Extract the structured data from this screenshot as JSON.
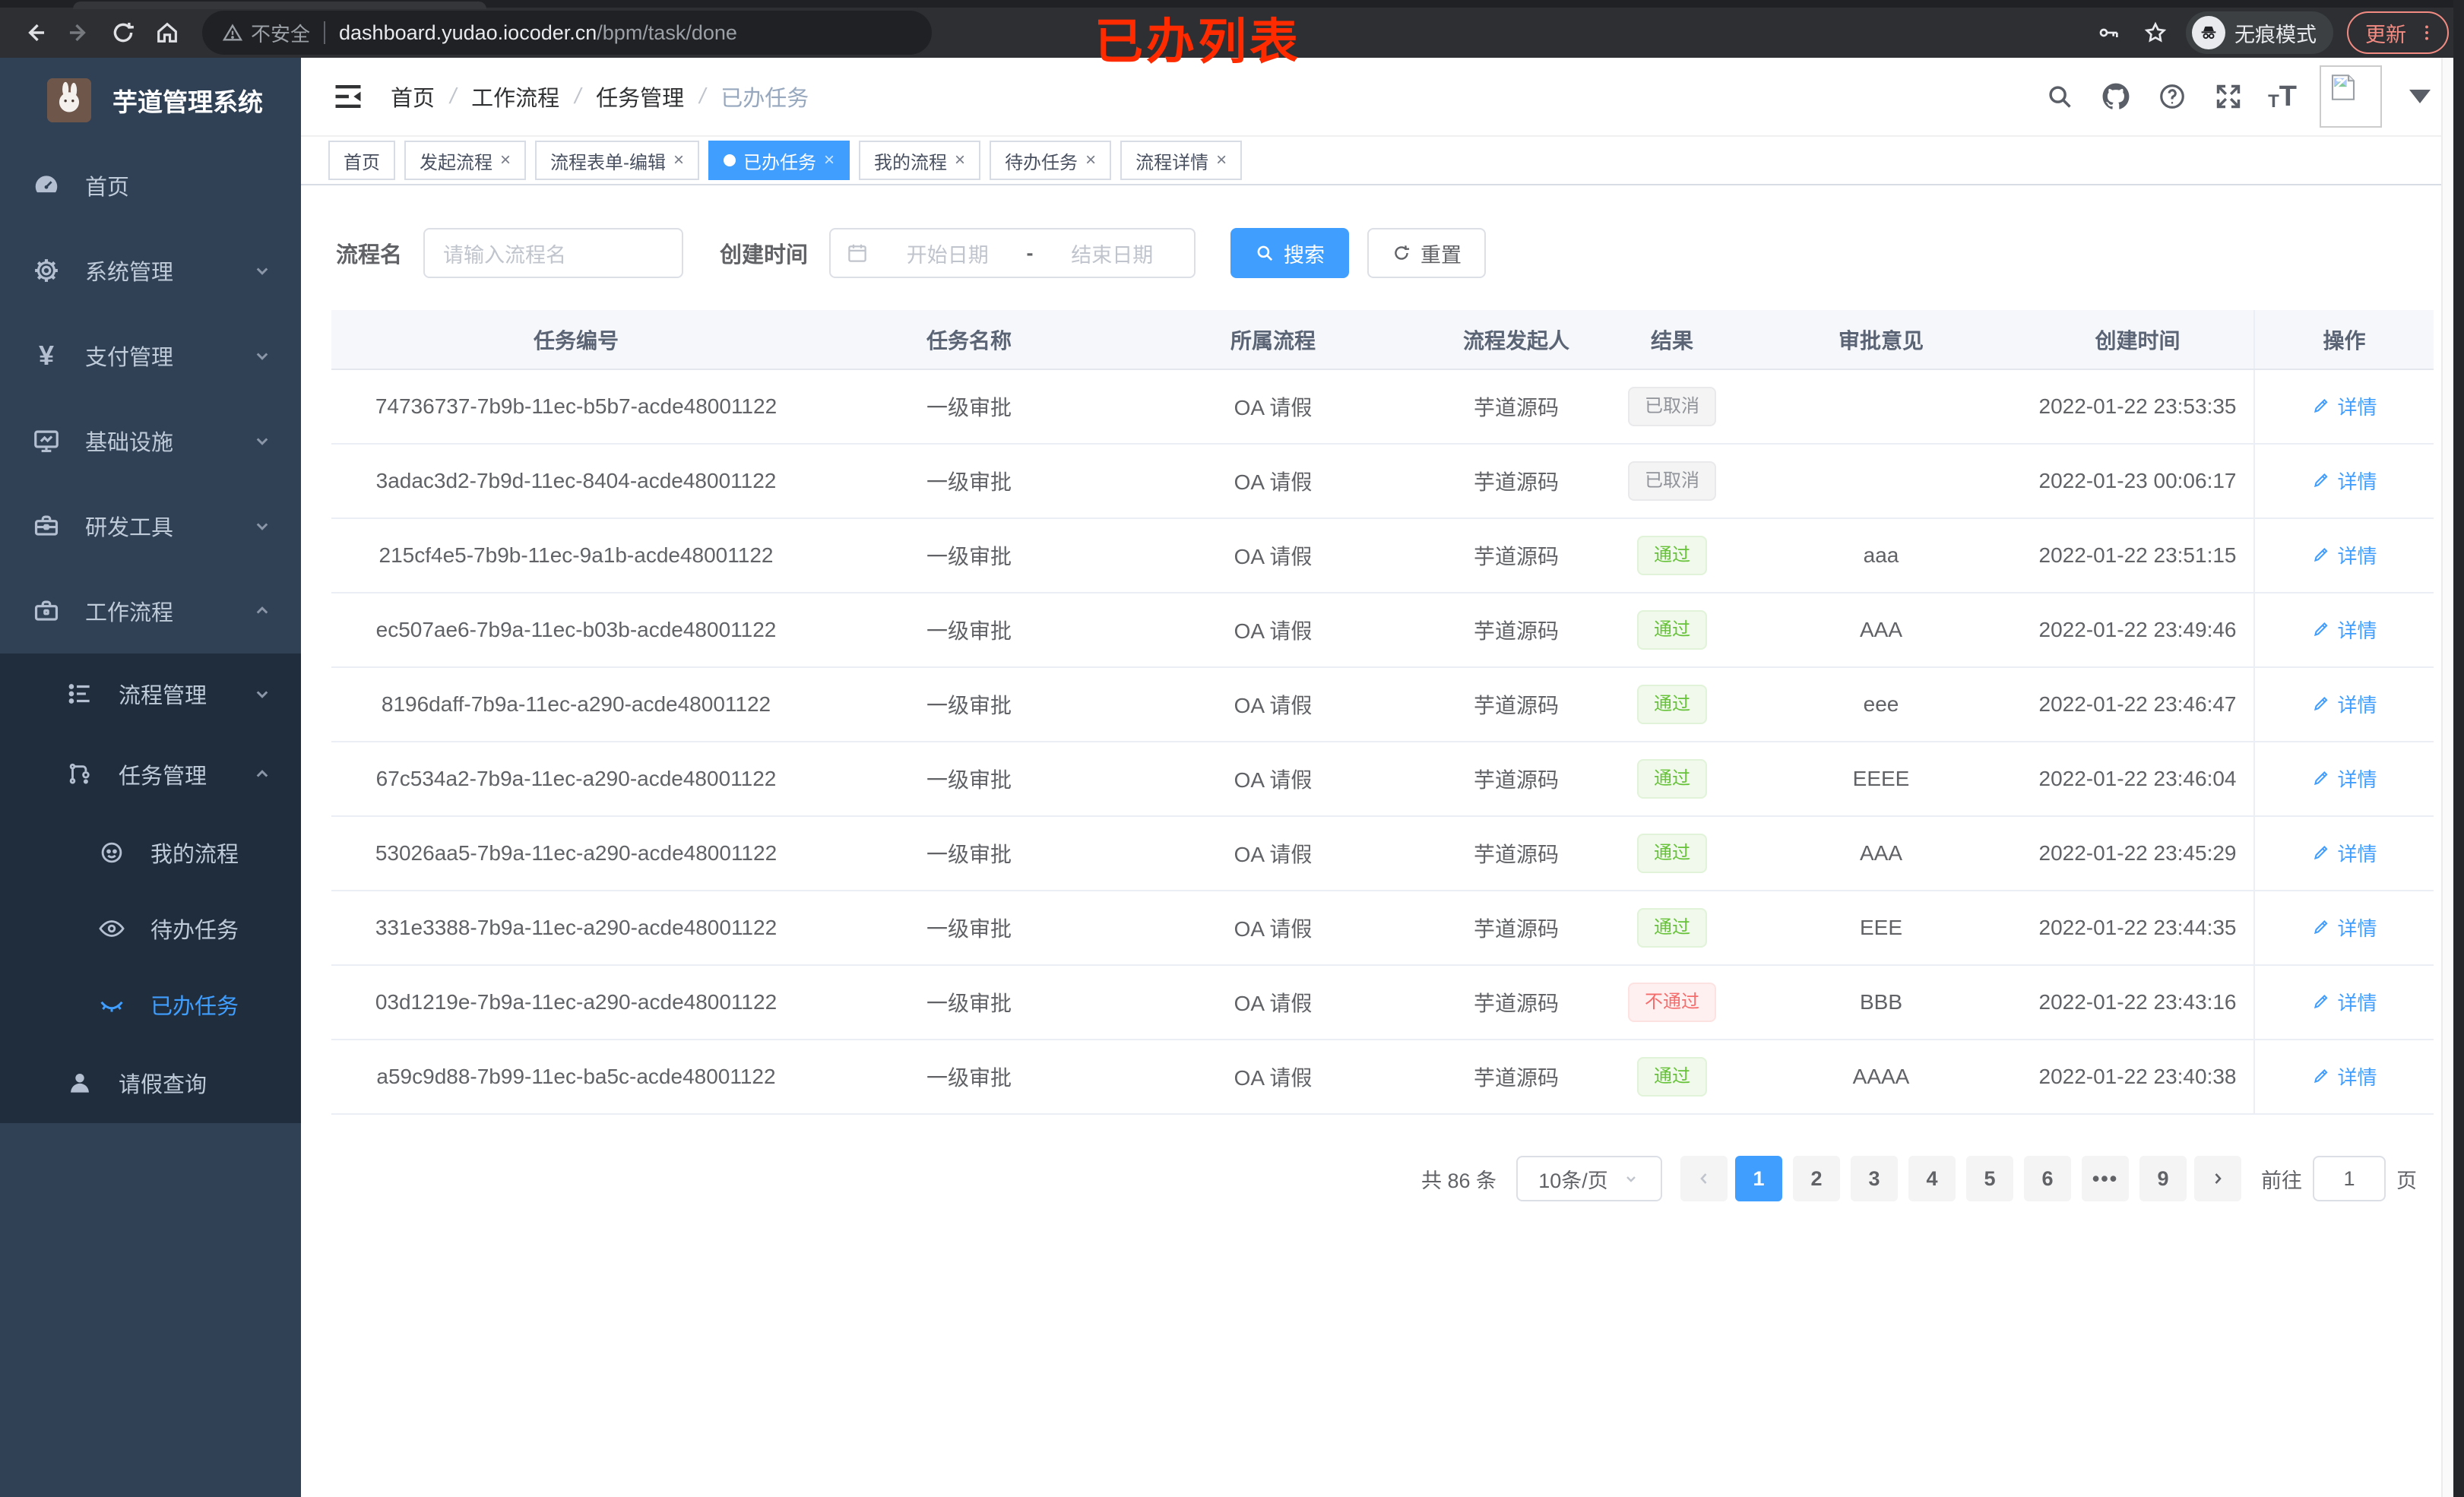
{
  "colors": {
    "accent": "#409eff",
    "success": "#67c23a",
    "danger": "#f56c6c",
    "info": "#909399",
    "sidebar_bg": "#304156",
    "submenu_bg": "#1f2d3d",
    "annotation": "#ff2b00"
  },
  "browser": {
    "security_label": "不安全",
    "url_host": "dashboard.yudao.iocoder.cn",
    "url_path": "/bpm/task/done",
    "incognito_label": "无痕模式",
    "update_label": "更新"
  },
  "annotation": "已办列表",
  "sidebar": {
    "title": "芋道管理系统",
    "menu": {
      "home": "首页",
      "system": "系统管理",
      "pay": "支付管理",
      "infra": "基础设施",
      "dev": "研发工具",
      "workflow": "工作流程",
      "process_mgmt": "流程管理",
      "task_mgmt": "任务管理",
      "my_process": "我的流程",
      "todo": "待办任务",
      "done": "已办任务",
      "leave": "请假查询"
    }
  },
  "breadcrumb": [
    "首页",
    "工作流程",
    "任务管理",
    "已办任务"
  ],
  "breadcrumb_separator": "/",
  "tabs": [
    {
      "label": "首页",
      "closable": false,
      "active": false
    },
    {
      "label": "发起流程",
      "closable": true,
      "active": false
    },
    {
      "label": "流程表单-编辑",
      "closable": true,
      "active": false
    },
    {
      "label": "已办任务",
      "closable": true,
      "active": true
    },
    {
      "label": "我的流程",
      "closable": true,
      "active": false
    },
    {
      "label": "待办任务",
      "closable": true,
      "active": false
    },
    {
      "label": "流程详情",
      "closable": true,
      "active": false
    }
  ],
  "close_glyph": "×",
  "filters": {
    "name_label": "流程名",
    "name_placeholder": "请输入流程名",
    "time_label": "创建时间",
    "start_placeholder": "开始日期",
    "range_separator": "-",
    "end_placeholder": "结束日期",
    "search_label": "搜索",
    "reset_label": "重置"
  },
  "table": {
    "columns": [
      "任务编号",
      "任务名称",
      "所属流程",
      "流程发起人",
      "结果",
      "审批意见",
      "创建时间",
      "操作"
    ],
    "detail_label": "详情",
    "rows": [
      {
        "id": "74736737-7b9b-11ec-b5b7-acde48001122",
        "name": "一级审批",
        "process": "OA 请假",
        "starter": "芋道源码",
        "result": "已取消",
        "result_type": "info",
        "comment": "",
        "time": "2022-01-22 23:53:35"
      },
      {
        "id": "3adac3d2-7b9d-11ec-8404-acde48001122",
        "name": "一级审批",
        "process": "OA 请假",
        "starter": "芋道源码",
        "result": "已取消",
        "result_type": "info",
        "comment": "",
        "time": "2022-01-23 00:06:17"
      },
      {
        "id": "215cf4e5-7b9b-11ec-9a1b-acde48001122",
        "name": "一级审批",
        "process": "OA 请假",
        "starter": "芋道源码",
        "result": "通过",
        "result_type": "success",
        "comment": "aaa",
        "time": "2022-01-22 23:51:15"
      },
      {
        "id": "ec507ae6-7b9a-11ec-b03b-acde48001122",
        "name": "一级审批",
        "process": "OA 请假",
        "starter": "芋道源码",
        "result": "通过",
        "result_type": "success",
        "comment": "AAA",
        "time": "2022-01-22 23:49:46"
      },
      {
        "id": "8196daff-7b9a-11ec-a290-acde48001122",
        "name": "一级审批",
        "process": "OA 请假",
        "starter": "芋道源码",
        "result": "通过",
        "result_type": "success",
        "comment": "eee",
        "time": "2022-01-22 23:46:47"
      },
      {
        "id": "67c534a2-7b9a-11ec-a290-acde48001122",
        "name": "一级审批",
        "process": "OA 请假",
        "starter": "芋道源码",
        "result": "通过",
        "result_type": "success",
        "comment": "EEEE",
        "time": "2022-01-22 23:46:04"
      },
      {
        "id": "53026aa5-7b9a-11ec-a290-acde48001122",
        "name": "一级审批",
        "process": "OA 请假",
        "starter": "芋道源码",
        "result": "通过",
        "result_type": "success",
        "comment": "AAA",
        "time": "2022-01-22 23:45:29"
      },
      {
        "id": "331e3388-7b9a-11ec-a290-acde48001122",
        "name": "一级审批",
        "process": "OA 请假",
        "starter": "芋道源码",
        "result": "通过",
        "result_type": "success",
        "comment": "EEE",
        "time": "2022-01-22 23:44:35"
      },
      {
        "id": "03d1219e-7b9a-11ec-a290-acde48001122",
        "name": "一级审批",
        "process": "OA 请假",
        "starter": "芋道源码",
        "result": "不通过",
        "result_type": "danger",
        "comment": "BBB",
        "time": "2022-01-22 23:43:16"
      },
      {
        "id": "a59c9d88-7b99-11ec-ba5c-acde48001122",
        "name": "一级审批",
        "process": "OA 请假",
        "starter": "芋道源码",
        "result": "通过",
        "result_type": "success",
        "comment": "AAAA",
        "time": "2022-01-22 23:40:38"
      }
    ]
  },
  "pagination": {
    "total": "共 86 条",
    "page_size": "10条/页",
    "pages": [
      "1",
      "2",
      "3",
      "4",
      "5",
      "6",
      "•••",
      "9"
    ],
    "active_page": "1",
    "goto_label": "前往",
    "goto_value": "1",
    "page_unit": "页"
  }
}
